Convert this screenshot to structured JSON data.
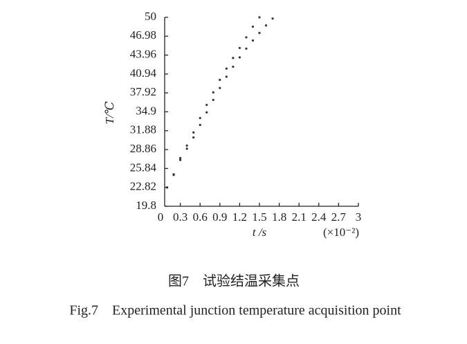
{
  "chart_data": {
    "type": "scatter",
    "ylabel": "T/℃",
    "xlabel": "t /s",
    "xunit": "(×10⁻²)",
    "xlim": [
      0,
      3
    ],
    "xticks": [
      0,
      0.3,
      0.6,
      0.9,
      1.2,
      1.5,
      1.8,
      2.1,
      2.4,
      2.7,
      3
    ],
    "ylim": [
      19.8,
      50
    ],
    "yticks": [
      19.8,
      22.82,
      25.84,
      28.86,
      31.88,
      34.9,
      37.92,
      40.94,
      43.96,
      46.98,
      50
    ],
    "series": [
      {
        "color": "#333333",
        "x": [
          0.1,
          0.2,
          0.3,
          0.4,
          0.5,
          0.6,
          0.7,
          0.8,
          0.9,
          1.0,
          1.1,
          1.2,
          1.3,
          1.4,
          1.5
        ],
        "values": [
          22.8,
          24.9,
          27.5,
          29.5,
          31.6,
          33.9,
          36.0,
          38.0,
          40.0,
          41.8,
          43.5,
          45.1,
          46.8,
          48.5,
          50
        ]
      },
      {
        "color": "#333333",
        "x": [
          0.1,
          0.2,
          0.3,
          0.4,
          0.5,
          0.6,
          0.7,
          0.8,
          0.9,
          1.0,
          1.1,
          1.2,
          1.3,
          1.4,
          1.5,
          1.6,
          1.7
        ],
        "values": [
          22.8,
          24.8,
          27.2,
          29.0,
          30.8,
          32.8,
          34.8,
          36.8,
          38.7,
          40.5,
          42.1,
          43.6,
          45.0,
          46.3,
          47.5,
          48.7,
          49.8
        ]
      }
    ]
  },
  "caption": {
    "cn": "图7　试验结温采集点",
    "en": "Fig.7　Experimental junction temperature acquisition point"
  }
}
